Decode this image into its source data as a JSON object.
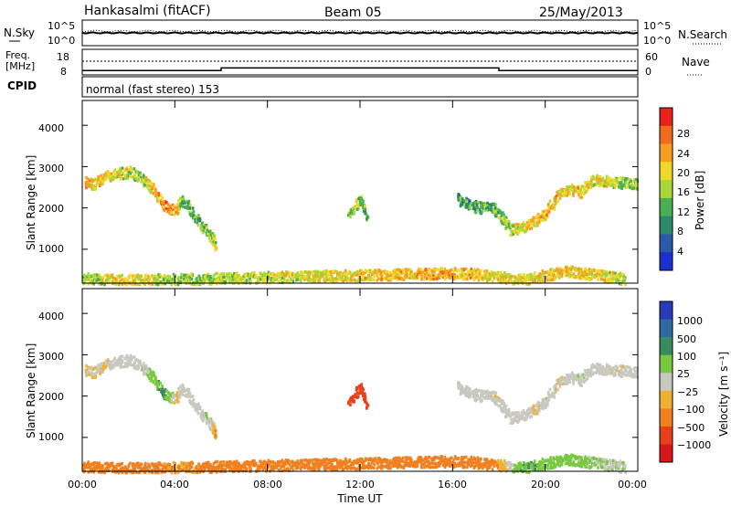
{
  "header": {
    "title": "Hankasalmi (fitACF)",
    "beam": "Beam 05",
    "date": "25/May/2013"
  },
  "top_panels": {
    "nsky_label": "N.Sky",
    "nsearch_label": "N.Search",
    "noise_ticks_left": [
      "10^5",
      "10^0"
    ],
    "noise_ticks_right": [
      "10^5",
      "10^0"
    ],
    "freq_label_1": "Freq.",
    "freq_label_2": "[MHz]",
    "freq_ticks": [
      "18",
      "8"
    ],
    "nave_label": "Nave",
    "nave_ticks": [
      "60",
      "0"
    ],
    "cpid_label": "CPID",
    "cpid_text": "normal (fast stereo) 153"
  },
  "axes": {
    "ylabel": "Slant Range [km]",
    "y_ticks": [
      "4000",
      "3000",
      "2000",
      "1000"
    ],
    "x_ticks": [
      "00:00",
      "04:00",
      "08:00",
      "12:00",
      "16:00",
      "20:00",
      "00:00"
    ],
    "xlabel": "Time UT"
  },
  "power_colorbar": {
    "label": "Power [dB]",
    "ticks": [
      "28",
      "24",
      "20",
      "16",
      "12",
      "8",
      "4"
    ],
    "colors": [
      "#e8221a",
      "#f26a1c",
      "#f7a020",
      "#f0d82a",
      "#a8d838",
      "#48b050",
      "#2c8a6a",
      "#2a5aa8",
      "#1a30d0"
    ]
  },
  "velocity_colorbar": {
    "label": "Velocity [m s⁻¹]",
    "ticks": [
      "1000",
      "500",
      "100",
      "25",
      "−25",
      "−100",
      "−500",
      "−1000"
    ],
    "colors": [
      "#2a3ab8",
      "#2e6aa0",
      "#3a8a60",
      "#78c840",
      "#c8c8c0",
      "#f0b030",
      "#f08020",
      "#e84018",
      "#d81818"
    ]
  },
  "chart_data": {
    "type": "heatmap",
    "x_range_hours": [
      0,
      24
    ],
    "y_range_km": [
      180,
      4600
    ],
    "y_tick_values": [
      1000,
      2000,
      3000,
      4000
    ],
    "x_tick_values": [
      0,
      4,
      8,
      12,
      16,
      20,
      24
    ],
    "power_scale_db": [
      0,
      30
    ],
    "velocity_scale_ms": [
      -1000,
      1000
    ],
    "cpid": 153,
    "freq_steps": [
      {
        "start_h": 0.0,
        "end_h": 6.0,
        "freq_mhz": 10
      },
      {
        "start_h": 6.0,
        "end_h": 18.0,
        "freq_mhz": 12
      },
      {
        "start_h": 18.0,
        "end_h": 24.0,
        "freq_mhz": 10
      }
    ],
    "echo_bands": [
      {
        "name": "morning_F",
        "points": [
          [
            0.1,
            2650,
            22,
            -20
          ],
          [
            0.5,
            2600,
            20,
            -10
          ],
          [
            1.0,
            2800,
            20,
            -15
          ],
          [
            1.5,
            2850,
            18,
            10
          ],
          [
            2.0,
            2900,
            16,
            -5
          ],
          [
            2.5,
            2750,
            14,
            0
          ],
          [
            3.0,
            2500,
            20,
            60
          ],
          [
            3.5,
            2100,
            24,
            120
          ],
          [
            4.0,
            1950,
            22,
            -20
          ],
          [
            4.3,
            2250,
            12,
            0
          ],
          [
            5.0,
            1700,
            12,
            0
          ],
          [
            5.5,
            1350,
            14,
            30
          ],
          [
            5.8,
            1100,
            18,
            -120
          ]
        ]
      },
      {
        "name": "night_F",
        "points": [
          [
            16.2,
            2250,
            10,
            0
          ],
          [
            17.0,
            2050,
            10,
            0
          ],
          [
            17.8,
            2000,
            12,
            -10
          ],
          [
            18.5,
            1500,
            16,
            0
          ],
          [
            19.0,
            1550,
            18,
            0
          ],
          [
            19.5,
            1700,
            20,
            -30
          ],
          [
            20.0,
            1900,
            22,
            20
          ],
          [
            20.5,
            2300,
            20,
            -20
          ],
          [
            21.0,
            2500,
            18,
            0
          ],
          [
            21.5,
            2400,
            20,
            10
          ],
          [
            22.0,
            2700,
            18,
            0
          ],
          [
            23.0,
            2650,
            16,
            -10
          ],
          [
            24.0,
            2600,
            14,
            0
          ]
        ]
      },
      {
        "name": "noon_patch",
        "points": [
          [
            11.5,
            1900,
            14,
            -600
          ],
          [
            12.0,
            2200,
            14,
            -800
          ],
          [
            12.3,
            1800,
            12,
            -500
          ]
        ]
      },
      {
        "name": "near_range",
        "points": [
          [
            0.0,
            320,
            14,
            -200
          ],
          [
            2.0,
            280,
            20,
            -150
          ],
          [
            4.0,
            300,
            14,
            -100
          ],
          [
            16.0,
            450,
            22,
            -300
          ],
          [
            17.0,
            420,
            20,
            -250
          ],
          [
            19.0,
            300,
            18,
            100
          ],
          [
            21.0,
            500,
            20,
            50
          ],
          [
            23.5,
            300,
            16,
            10
          ]
        ]
      }
    ]
  }
}
